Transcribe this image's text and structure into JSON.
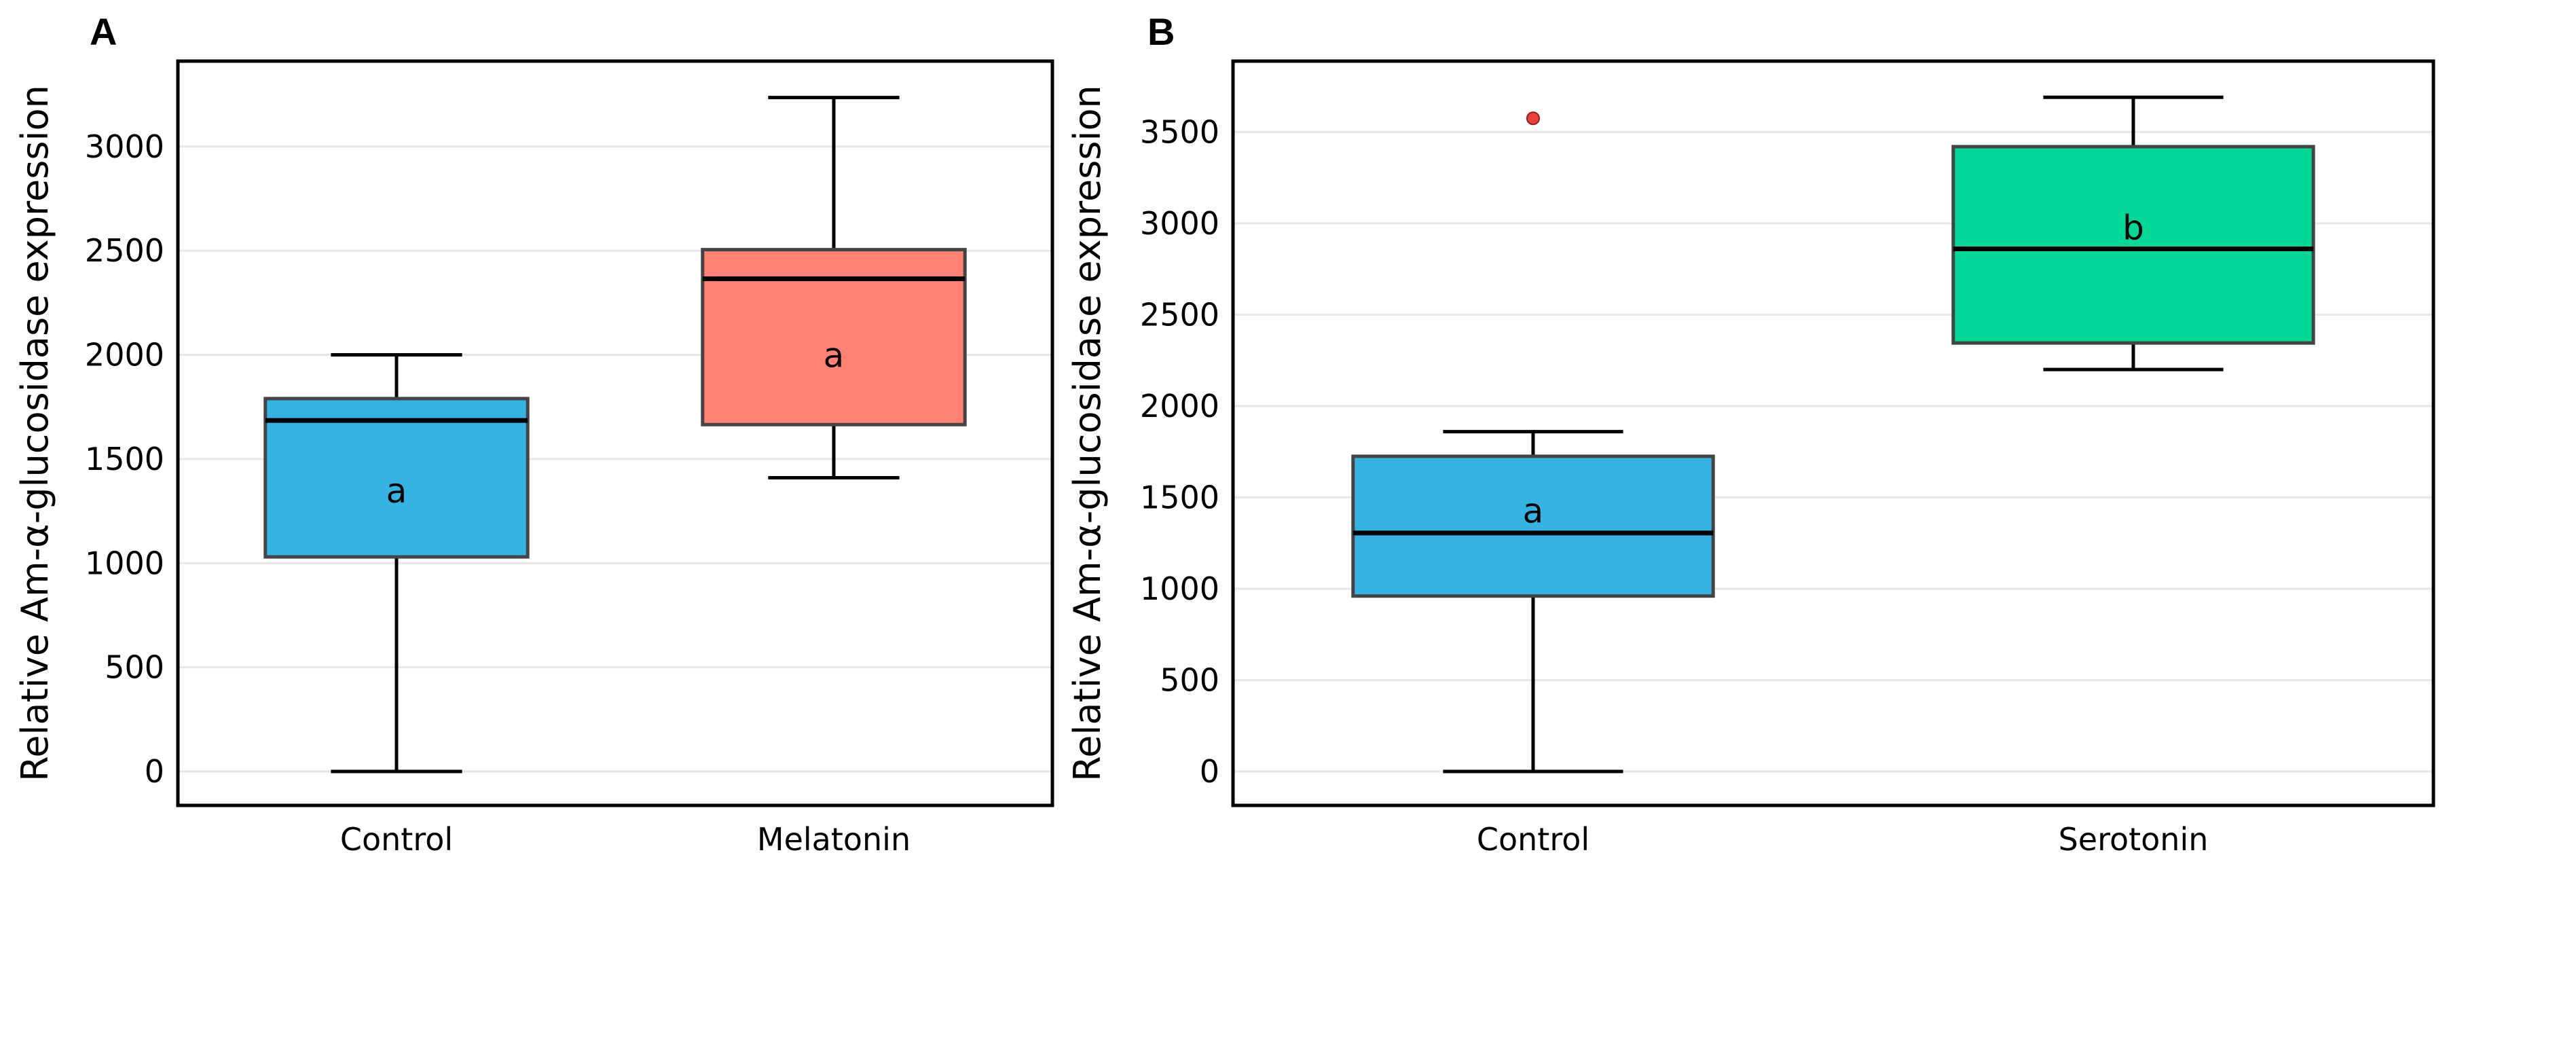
{
  "chart_data": [
    {
      "type": "box",
      "panel_label": "A",
      "ylabel": "Relative Am-α-glucosidase expression",
      "xlabel": "",
      "ylim": [
        -163,
        3410
      ],
      "yticks": [
        0,
        500,
        1000,
        1500,
        2000,
        2500,
        3000
      ],
      "grid": "horizontal",
      "categories": [
        "Control",
        "Melatonin"
      ],
      "boxes": [
        {
          "name": "Control",
          "min": 0,
          "q1": 1030,
          "median": 1685,
          "q3": 1790,
          "max": 2000,
          "outliers": [],
          "color": "#35b4e4",
          "letter": "a",
          "letter_y": 1350
        },
        {
          "name": "Melatonin",
          "min": 1410,
          "q1": 1665,
          "median": 2365,
          "q3": 2505,
          "max": 3235,
          "outliers": [],
          "color": "#ff8274",
          "letter": "a",
          "letter_y": 2000
        }
      ]
    },
    {
      "type": "box",
      "panel_label": "B",
      "ylabel": "Relative Am-α-glucosidase expression",
      "xlabel": "",
      "ylim": [
        -186,
        3888
      ],
      "yticks": [
        0,
        500,
        1000,
        1500,
        2000,
        2500,
        3000,
        3500
      ],
      "grid": "horizontal",
      "categories": [
        "Control",
        "Serotonin"
      ],
      "boxes": [
        {
          "name": "Control",
          "min": 0,
          "q1": 960,
          "median": 1305,
          "q3": 1725,
          "max": 1860,
          "outliers": [
            3575
          ],
          "color": "#35b4e4",
          "letter": "a",
          "letter_y": 1430
        },
        {
          "name": "Serotonin",
          "min": 2200,
          "q1": 2345,
          "median": 2860,
          "q3": 3420,
          "max": 3690,
          "outliers": [],
          "color": "#00d898",
          "letter": "b",
          "letter_y": 2980
        }
      ]
    }
  ]
}
